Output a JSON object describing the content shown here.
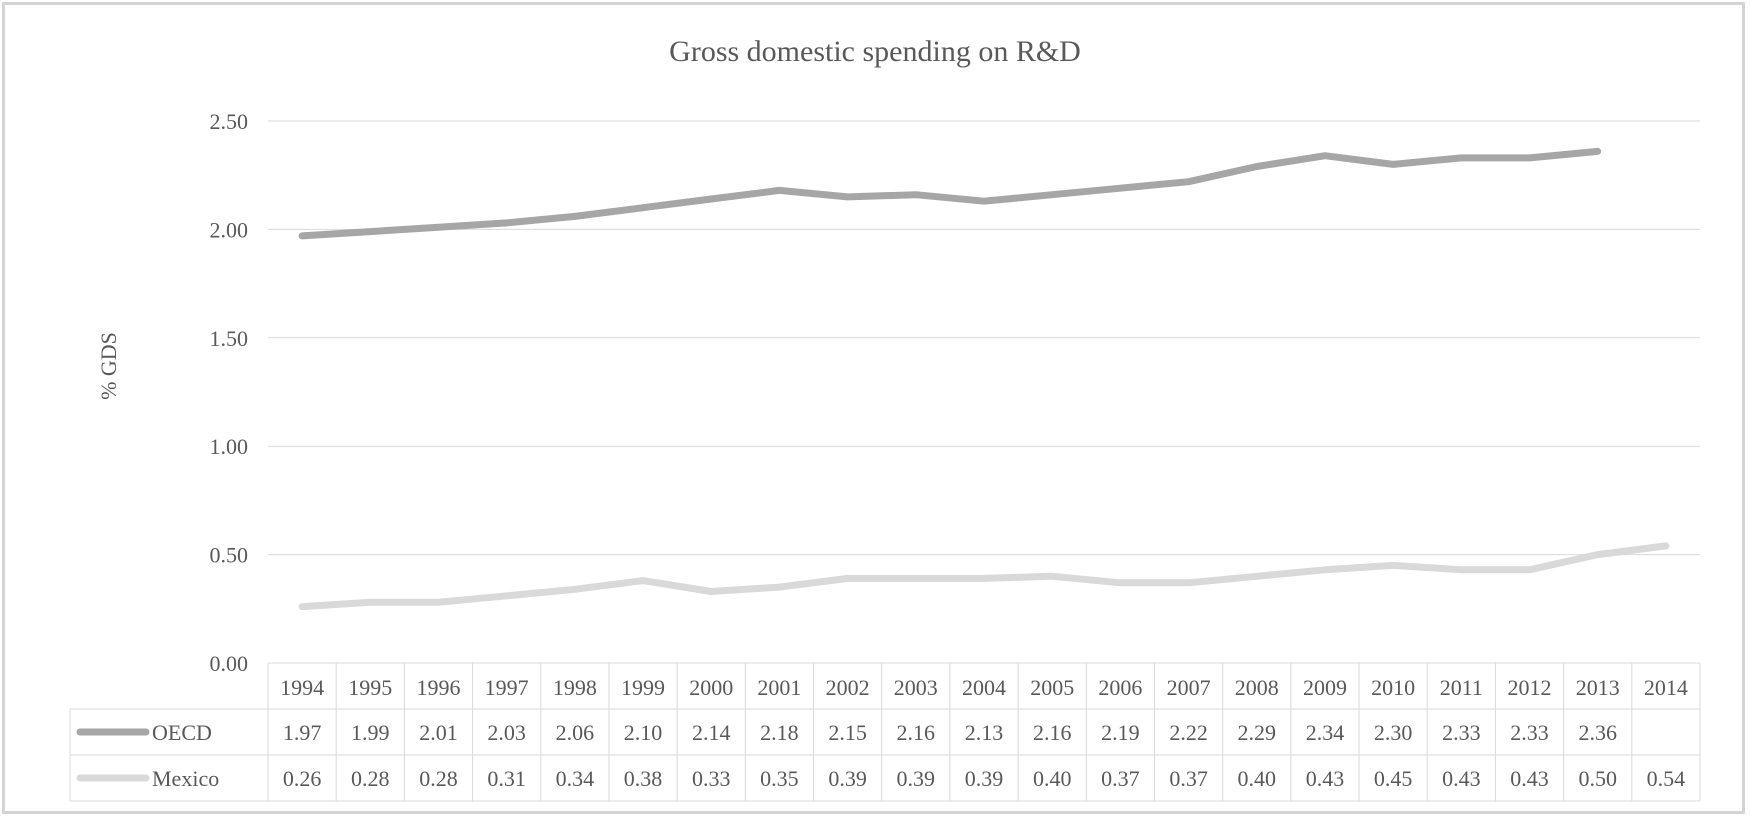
{
  "chart_data": {
    "type": "line",
    "title": "Gross domestic spending on R&D",
    "xlabel": "",
    "ylabel": "% GDS",
    "ylim": [
      0,
      2.5
    ],
    "yticks": [
      "0.00",
      "0.50",
      "1.00",
      "1.50",
      "2.00",
      "2.50"
    ],
    "grid": true,
    "legend": "data-table",
    "categories": [
      "1994",
      "1995",
      "1996",
      "1997",
      "1998",
      "1999",
      "2000",
      "2001",
      "2002",
      "2003",
      "2004",
      "2005",
      "2006",
      "2007",
      "2008",
      "2009",
      "2010",
      "2011",
      "2012",
      "2013",
      "2014"
    ],
    "series": [
      {
        "name": "OECD",
        "color": "#a6a6a6",
        "values": [
          1.97,
          1.99,
          2.01,
          2.03,
          2.06,
          2.1,
          2.14,
          2.18,
          2.15,
          2.16,
          2.13,
          2.16,
          2.19,
          2.22,
          2.29,
          2.34,
          2.3,
          2.33,
          2.33,
          2.36,
          null
        ],
        "labels": [
          "1.97",
          "1.99",
          "2.01",
          "2.03",
          "2.06",
          "2.10",
          "2.14",
          "2.18",
          "2.15",
          "2.16",
          "2.13",
          "2.16",
          "2.19",
          "2.22",
          "2.29",
          "2.34",
          "2.30",
          "2.33",
          "2.33",
          "2.36",
          ""
        ]
      },
      {
        "name": "Mexico",
        "color": "#d9d9d9",
        "values": [
          0.26,
          0.28,
          0.28,
          0.31,
          0.34,
          0.38,
          0.33,
          0.35,
          0.39,
          0.39,
          0.39,
          0.4,
          0.37,
          0.37,
          0.4,
          0.43,
          0.45,
          0.43,
          0.43,
          0.5,
          0.54
        ],
        "labels": [
          "0.26",
          "0.28",
          "0.28",
          "0.31",
          "0.34",
          "0.38",
          "0.33",
          "0.35",
          "0.39",
          "0.39",
          "0.39",
          "0.40",
          "0.37",
          "0.37",
          "0.40",
          "0.43",
          "0.45",
          "0.43",
          "0.43",
          "0.50",
          "0.54"
        ]
      }
    ]
  }
}
